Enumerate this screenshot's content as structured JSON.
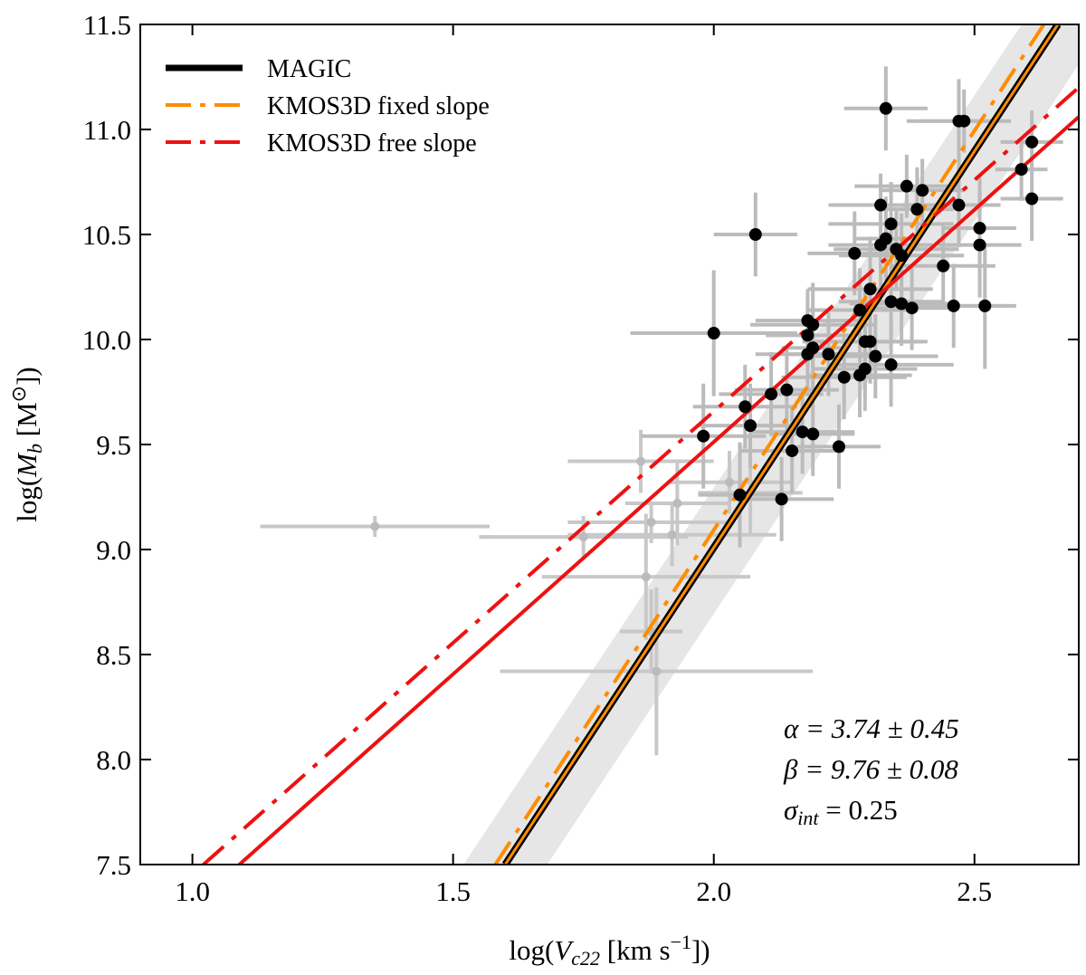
{
  "chart_data": {
    "type": "scatter",
    "x_label": [
      "log(",
      "V",
      "c22",
      " [km s",
      "−1",
      "])"
    ],
    "y_label": [
      "log(",
      "M",
      "b",
      " [M",
      "⊙",
      "])"
    ],
    "xlim": [
      0.9,
      2.7
    ],
    "ylim": [
      7.5,
      11.5
    ],
    "xticks": [
      {
        "value": 1,
        "label": "1.0"
      },
      1.5,
      {
        "value": 2,
        "label": "2.0"
      },
      2.5
    ],
    "yticks": [
      7.5,
      {
        "value": 8,
        "label": "8.0"
      },
      8.5,
      {
        "value": 9,
        "label": "9.0"
      },
      9.5,
      {
        "value": 10,
        "label": "10.0"
      },
      10.5,
      {
        "value": 11,
        "label": "11.0"
      },
      11.5
    ],
    "legend": "upper left",
    "band": {
      "color": "#e6e6e6",
      "x": [
        1.52,
        2.7
      ],
      "y_upper": [
        7.5,
        11.91
      ],
      "y_lower": [
        6.9,
        11.31
      ]
    },
    "lines": [
      {
        "name": "MAGIC",
        "color": "#000000",
        "inner_color": "#ff8c00",
        "style": "solid",
        "x": [
          1.6,
          2.66
        ],
        "y": [
          7.5,
          11.5
        ]
      },
      {
        "name": "KMOS3D fixed slope",
        "color": "#ff8c00",
        "style": "dashdot",
        "x": [
          1.581,
          2.633
        ],
        "y": [
          7.5,
          11.5
        ]
      },
      {
        "name": "KMOS3D free slope",
        "color": "#ee1111",
        "style": "dashdot",
        "x": [
          1.021,
          2.7
        ],
        "y": [
          7.5,
          11.2
        ]
      },
      {
        "color": "#ee1111",
        "style": "solid",
        "x": [
          1.09,
          2.7
        ],
        "y": [
          7.5,
          11.06
        ]
      }
    ],
    "series": [
      {
        "color": "#bbbbbb",
        "error_color": "#c8c8c8",
        "x": [
          1.35,
          1.75,
          1.86,
          1.88,
          1.92,
          1.87,
          1.88,
          1.89,
          2.03,
          2.07,
          1.93
        ],
        "y": [
          9.11,
          9.06,
          9.42,
          9.13,
          9.07,
          8.87,
          8.61,
          8.42,
          9.32,
          9.27,
          9.22
        ],
        "xerr": [
          0.22,
          0.2,
          0.14,
          0.16,
          0.2,
          0.2,
          0.06,
          0.3,
          0.12,
          0.1,
          0.1
        ],
        "yerr": [
          0.05,
          0.1,
          0.15,
          0.1,
          0.15,
          0.3,
          0.2,
          0.4,
          0.15,
          0.2,
          0.2
        ]
      },
      {
        "color": "#000000",
        "error_color": "#bbbbbb",
        "x": [
          2.33,
          2.47,
          2.48,
          2.61,
          2.59,
          2.61,
          2.37,
          2.4,
          2.39,
          2.32,
          2.34,
          2.47,
          2.08,
          2.32,
          2.33,
          2.35,
          2.27,
          2.51,
          2.51,
          2.44,
          2.36,
          2.3,
          2.34,
          2.36,
          2.38,
          2.46,
          2.52,
          2.28,
          2.0,
          2.18,
          2.19,
          2.18,
          2.19,
          2.18,
          2.29,
          2.3,
          2.22,
          2.31,
          2.34,
          2.28,
          2.29,
          2.25,
          2.11,
          2.14,
          2.06,
          2.07,
          1.98,
          2.17,
          2.19,
          2.15,
          2.24,
          2.05,
          2.13
        ],
        "y": [
          11.1,
          11.04,
          11.04,
          10.94,
          10.81,
          10.67,
          10.73,
          10.71,
          10.62,
          10.64,
          10.55,
          10.64,
          10.5,
          10.45,
          10.48,
          10.43,
          10.41,
          10.53,
          10.45,
          10.35,
          10.4,
          10.24,
          10.18,
          10.17,
          10.15,
          10.16,
          10.16,
          10.14,
          10.03,
          10.09,
          10.07,
          10.02,
          9.96,
          9.93,
          9.99,
          9.99,
          9.93,
          9.92,
          9.88,
          9.83,
          9.86,
          9.82,
          9.74,
          9.76,
          9.68,
          9.59,
          9.54,
          9.56,
          9.55,
          9.47,
          9.49,
          9.26,
          9.24
        ],
        "xerr": [
          0.08,
          0.1,
          0.08,
          0.06,
          0.05,
          0.06,
          0.1,
          0.08,
          0.07,
          0.1,
          0.12,
          0.08,
          0.08,
          0.1,
          0.06,
          0.12,
          0.09,
          0.07,
          0.08,
          0.1,
          0.12,
          0.12,
          0.1,
          0.1,
          0.08,
          0.1,
          0.06,
          0.1,
          0.16,
          0.1,
          0.12,
          0.08,
          0.06,
          0.1,
          0.12,
          0.1,
          0.08,
          0.12,
          0.12,
          0.1,
          0.1,
          0.12,
          0.1,
          0.1,
          0.1,
          0.1,
          0.12,
          0.1,
          0.08,
          0.1,
          0.08,
          0.08,
          0.1
        ],
        "yerr": [
          0.2,
          0.2,
          0.15,
          0.15,
          0.15,
          0.2,
          0.15,
          0.15,
          0.2,
          0.15,
          0.2,
          0.2,
          0.2,
          0.2,
          0.2,
          0.2,
          0.2,
          0.25,
          0.25,
          0.2,
          0.2,
          0.25,
          0.2,
          0.2,
          0.2,
          0.2,
          0.3,
          0.2,
          0.3,
          0.15,
          0.2,
          0.15,
          0.2,
          0.2,
          0.25,
          0.2,
          0.2,
          0.2,
          0.2,
          0.2,
          0.2,
          0.2,
          0.2,
          0.2,
          0.2,
          0.2,
          0.25,
          0.2,
          0.2,
          0.2,
          0.2,
          0.25,
          0.2
        ]
      }
    ],
    "annotations": [
      [
        "α = 3.74 ± 0.45"
      ],
      [
        "β = 9.76 ± 0.08"
      ],
      [
        "σ",
        "int",
        " = 0.25"
      ]
    ]
  }
}
